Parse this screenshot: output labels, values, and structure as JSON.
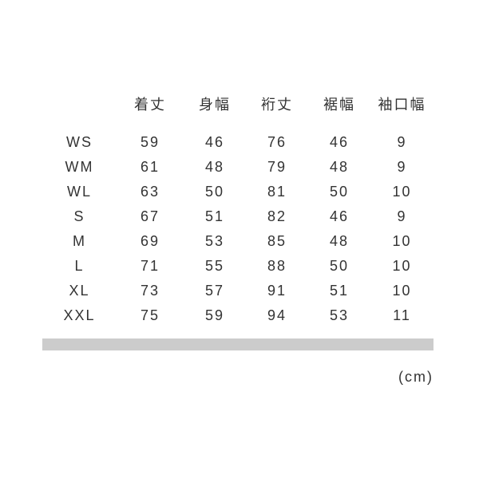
{
  "page": {
    "background_color": "#ffffff",
    "text_color": "#333333",
    "divider_color": "#cccccc",
    "unit_label": "(cm)"
  },
  "size_chart": {
    "column_headers": [
      "着丈",
      "身幅",
      "裄丈",
      "裾幅",
      "袖口幅"
    ],
    "rows": [
      {
        "size": "WS",
        "values": [
          "59",
          "46",
          "76",
          "46",
          "9"
        ]
      },
      {
        "size": "WM",
        "values": [
          "61",
          "48",
          "79",
          "48",
          "9"
        ]
      },
      {
        "size": "WL",
        "values": [
          "63",
          "50",
          "81",
          "50",
          "10"
        ]
      },
      {
        "size": "S",
        "values": [
          "67",
          "51",
          "82",
          "46",
          "9"
        ]
      },
      {
        "size": "M",
        "values": [
          "69",
          "53",
          "85",
          "48",
          "10"
        ]
      },
      {
        "size": "L",
        "values": [
          "71",
          "55",
          "88",
          "50",
          "10"
        ]
      },
      {
        "size": "XL",
        "values": [
          "73",
          "57",
          "91",
          "51",
          "10"
        ]
      },
      {
        "size": "XXL",
        "values": [
          "75",
          "59",
          "94",
          "53",
          "11"
        ]
      }
    ]
  },
  "chart_data": {
    "type": "table",
    "title": "",
    "unit": "(cm)",
    "columns": [
      "",
      "着丈",
      "身幅",
      "裄丈",
      "裾幅",
      "袖口幅"
    ],
    "rows": [
      [
        "WS",
        59,
        46,
        76,
        46,
        9
      ],
      [
        "WM",
        61,
        48,
        79,
        48,
        9
      ],
      [
        "WL",
        63,
        50,
        81,
        50,
        10
      ],
      [
        "S",
        67,
        51,
        82,
        46,
        9
      ],
      [
        "M",
        69,
        53,
        85,
        48,
        10
      ],
      [
        "L",
        71,
        55,
        88,
        50,
        10
      ],
      [
        "XL",
        73,
        57,
        91,
        51,
        10
      ],
      [
        "XXL",
        75,
        59,
        94,
        53,
        11
      ]
    ],
    "layout": {
      "gridlines": false,
      "legend": false
    }
  }
}
